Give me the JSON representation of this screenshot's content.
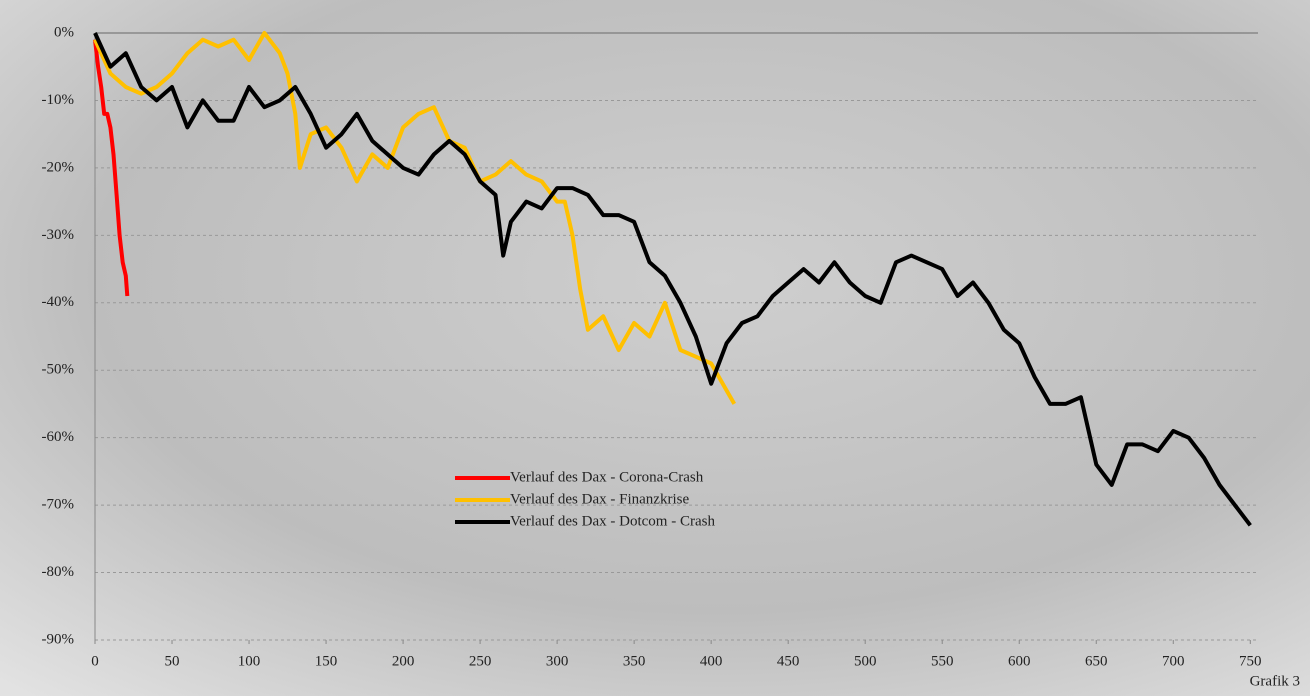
{
  "chart_data": {
    "type": "line",
    "xlim": [
      0,
      755
    ],
    "xticks": [
      0,
      50,
      100,
      150,
      200,
      250,
      300,
      350,
      400,
      450,
      500,
      550,
      600,
      650,
      700,
      750
    ],
    "ylim": [
      -90,
      0
    ],
    "yticks": [
      {
        "value": 0,
        "label": "0%"
      },
      {
        "value": -10,
        "label": "-10%"
      },
      {
        "value": -20,
        "label": "-20%"
      },
      {
        "value": -30,
        "label": "-30%"
      },
      {
        "value": -40,
        "label": "-40%"
      },
      {
        "value": -50,
        "label": "-50%"
      },
      {
        "value": -60,
        "label": "-60%"
      },
      {
        "value": -70,
        "label": "-70%"
      },
      {
        "value": -80,
        "label": "-80%"
      },
      {
        "value": -90,
        "label": "-90%"
      }
    ],
    "grid": true,
    "legend": "center",
    "series": [
      {
        "name": "Verlauf des Dax - Corona-Crash",
        "color": "#ff0000",
        "x": [
          0,
          2,
          4,
          6,
          8,
          10,
          12,
          14,
          16,
          18,
          20,
          21
        ],
        "values": [
          -1,
          -5,
          -8,
          -12,
          -12,
          -14,
          -18,
          -24,
          -30,
          -34,
          -36,
          -39
        ]
      },
      {
        "name": "Verlauf des Dax - Finanzkrise",
        "color": "#ffc000",
        "x": [
          0,
          10,
          20,
          30,
          40,
          50,
          60,
          70,
          80,
          90,
          100,
          110,
          120,
          125,
          130,
          133,
          140,
          150,
          160,
          170,
          180,
          190,
          200,
          210,
          220,
          230,
          240,
          250,
          260,
          270,
          280,
          290,
          300,
          305,
          310,
          315,
          320,
          330,
          340,
          350,
          360,
          370,
          380,
          390,
          400,
          410,
          415
        ],
        "values": [
          -1,
          -6,
          -8,
          -9,
          -8,
          -6,
          -3,
          -1,
          -2,
          -1,
          -4,
          0,
          -3,
          -6,
          -12,
          -20,
          -15,
          -14,
          -17,
          -22,
          -18,
          -20,
          -14,
          -12,
          -11,
          -16,
          -17,
          -22,
          -21,
          -19,
          -21,
          -22,
          -25,
          -25,
          -30,
          -38,
          -44,
          -42,
          -47,
          -43,
          -45,
          -40,
          -47,
          -48,
          -49,
          -53,
          -55
        ]
      },
      {
        "name": "Verlauf des Dax - Dotcom - Crash",
        "color": "#000000",
        "x": [
          0,
          10,
          20,
          30,
          40,
          50,
          60,
          70,
          80,
          90,
          100,
          110,
          120,
          130,
          140,
          150,
          160,
          170,
          180,
          190,
          200,
          210,
          220,
          230,
          240,
          250,
          260,
          265,
          270,
          280,
          290,
          300,
          310,
          320,
          330,
          340,
          350,
          360,
          370,
          380,
          390,
          400,
          410,
          420,
          430,
          440,
          450,
          460,
          470,
          480,
          490,
          500,
          510,
          520,
          530,
          540,
          550,
          560,
          570,
          580,
          590,
          600,
          610,
          620,
          630,
          640,
          650,
          660,
          670,
          680,
          690,
          700,
          710,
          720,
          730,
          740,
          750
        ],
        "values": [
          0,
          -5,
          -3,
          -8,
          -10,
          -8,
          -14,
          -10,
          -13,
          -13,
          -8,
          -11,
          -10,
          -8,
          -12,
          -17,
          -15,
          -12,
          -16,
          -18,
          -20,
          -21,
          -18,
          -16,
          -18,
          -22,
          -24,
          -33,
          -28,
          -25,
          -26,
          -23,
          -23,
          -24,
          -27,
          -27,
          -28,
          -34,
          -36,
          -40,
          -45,
          -52,
          -46,
          -43,
          -42,
          -39,
          -37,
          -35,
          -37,
          -34,
          -37,
          -39,
          -40,
          -34,
          -33,
          -34,
          -35,
          -39,
          -37,
          -40,
          -44,
          -46,
          -51,
          -55,
          -55,
          -54,
          -64,
          -67,
          -61,
          -61,
          -62,
          -59,
          -60,
          -63,
          -67,
          -70,
          -73
        ]
      }
    ],
    "footnote": "Grafik 3"
  }
}
